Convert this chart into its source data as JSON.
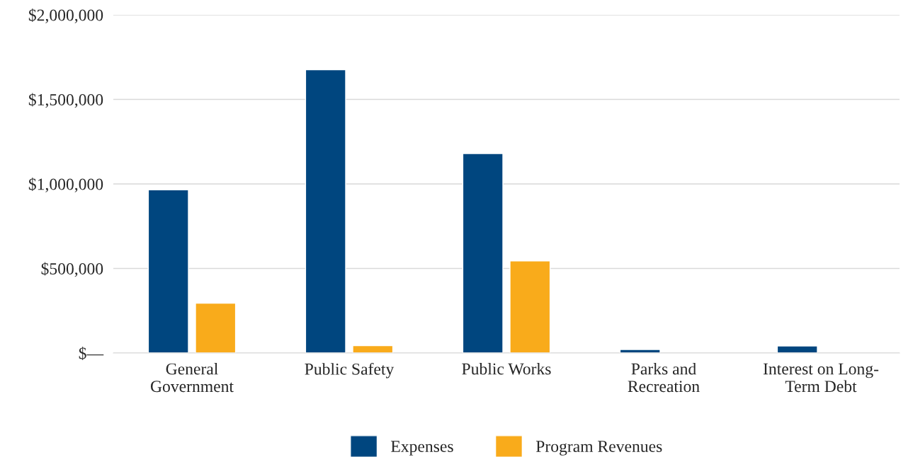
{
  "chart_data": {
    "type": "bar",
    "categories": [
      "General\nGovernment",
      "Public Safety",
      "Public Works",
      "Parks and\nRecreation",
      "Interest on Long-\nTerm Debt"
    ],
    "series": [
      {
        "name": "Expenses",
        "color": "#00467f",
        "values": [
          965000,
          1675000,
          1180000,
          21000,
          42000
        ]
      },
      {
        "name": "Program Revenues",
        "color": "#f9ab1b",
        "values": [
          295000,
          44000,
          545000,
          null,
          null
        ]
      }
    ],
    "ylim": [
      0,
      2000000
    ],
    "yticks": [
      {
        "value": 0,
        "label": "$—"
      },
      {
        "value": 500000,
        "label": "$500,000"
      },
      {
        "value": 1000000,
        "label": "$1,000,000"
      },
      {
        "value": 1500000,
        "label": "$1,500,000"
      },
      {
        "value": 2000000,
        "label": "$2,000,000"
      }
    ],
    "grid": "y",
    "legend": "bottom"
  }
}
